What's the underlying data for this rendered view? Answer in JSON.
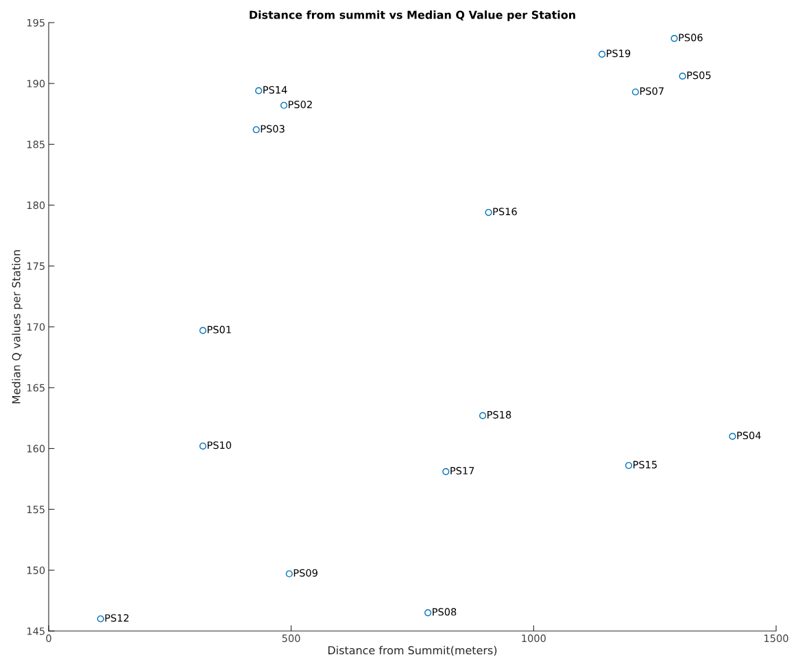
{
  "chart_data": {
    "type": "scatter",
    "title": "Distance from summit vs Median Q Value per Station",
    "xlabel": "Distance from Summit(meters)",
    "ylabel": "Median Q values per Station",
    "series": [
      {
        "color": "#0072bd",
        "x": [
          318,
          485,
          428,
          1410,
          1307,
          1290,
          1210,
          782,
          496,
          318,
          107,
          433,
          1196,
          907,
          819,
          895,
          1141
        ],
        "values": [
          169.7,
          188.2,
          186.2,
          161.0,
          190.6,
          193.7,
          189.3,
          146.5,
          149.7,
          160.2,
          146.0,
          189.4,
          158.6,
          179.4,
          158.1,
          162.7,
          192.4
        ]
      }
    ],
    "annotations": [
      {
        "text": "PS01",
        "x": 318,
        "y": 169.7
      },
      {
        "text": "PS02",
        "x": 485,
        "y": 188.2
      },
      {
        "text": "PS03",
        "x": 428,
        "y": 186.2
      },
      {
        "text": "PS04",
        "x": 1410,
        "y": 161.0
      },
      {
        "text": "PS05",
        "x": 1307,
        "y": 190.6
      },
      {
        "text": "PS06",
        "x": 1290,
        "y": 193.7
      },
      {
        "text": "PS07",
        "x": 1210,
        "y": 189.3
      },
      {
        "text": "PS08",
        "x": 782,
        "y": 146.5
      },
      {
        "text": "PS09",
        "x": 496,
        "y": 149.7
      },
      {
        "text": "PS10",
        "x": 318,
        "y": 160.2
      },
      {
        "text": "PS12",
        "x": 107,
        "y": 146.0
      },
      {
        "text": "PS14",
        "x": 433,
        "y": 189.4
      },
      {
        "text": "PS15",
        "x": 1196,
        "y": 158.6
      },
      {
        "text": "PS16",
        "x": 907,
        "y": 179.4
      },
      {
        "text": "PS17",
        "x": 819,
        "y": 158.1
      },
      {
        "text": "PS18",
        "x": 895,
        "y": 162.7
      },
      {
        "text": "PS19",
        "x": 1141,
        "y": 192.4
      }
    ],
    "xlim": [
      0,
      1500
    ],
    "xticks": [
      0,
      500,
      1000,
      1500
    ],
    "ylim": [
      145,
      195
    ],
    "yticks": [
      145,
      150,
      155,
      160,
      165,
      170,
      175,
      180,
      185,
      190,
      195
    ],
    "marker": "circle",
    "grid": false
  }
}
